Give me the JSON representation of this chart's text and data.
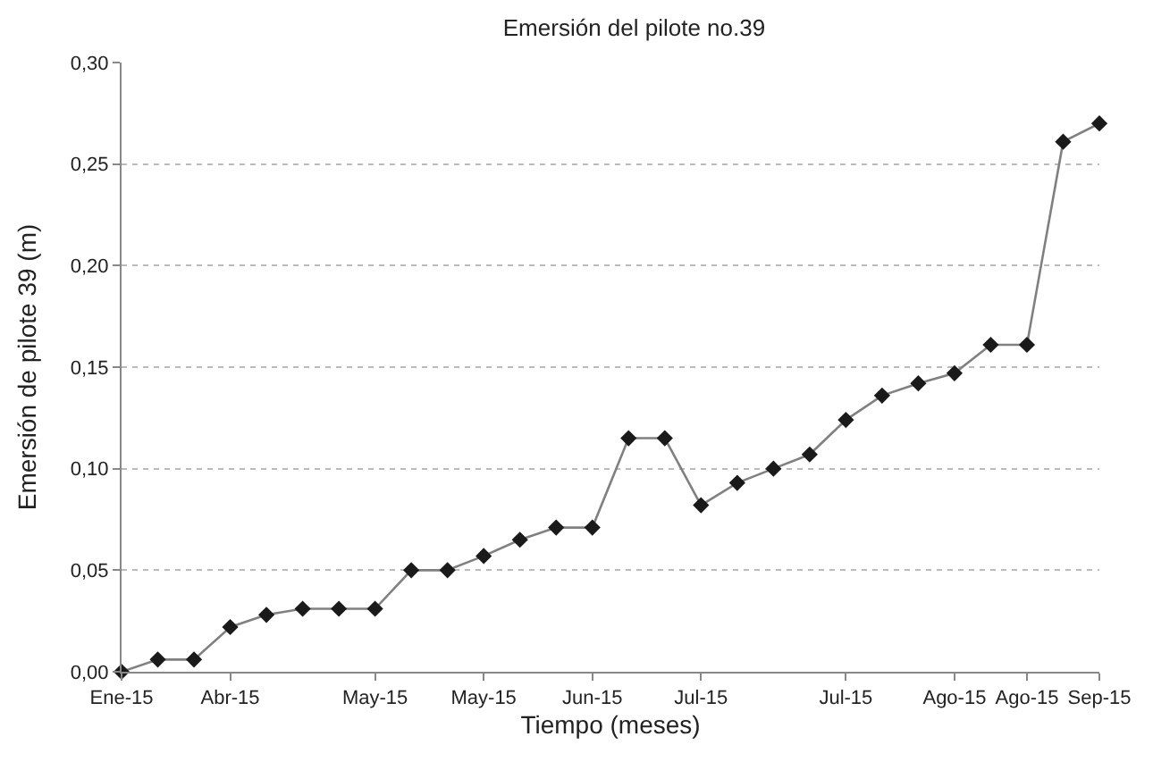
{
  "chart_data": {
    "type": "line",
    "title": "Emersión del pilote no.39",
    "xlabel": "Tiempo (meses)",
    "ylabel": "Emersión de pilote 39 (m)",
    "categories": [
      "Ene-15",
      null,
      null,
      "Abr-15",
      null,
      null,
      null,
      "May-15",
      null,
      null,
      "May-15",
      null,
      null,
      "Jun-15",
      null,
      null,
      "Jul-15",
      null,
      null,
      null,
      "Jul-15",
      null,
      null,
      "Ago-15",
      null,
      "Ago-15",
      null,
      "Sep-15"
    ],
    "series": [
      {
        "color": "#1a1a1a",
        "values": [
          0,
          0.006,
          0.006,
          0.022,
          0.028,
          0.031,
          0.031,
          0.031,
          0.05,
          0.05,
          0.057,
          0.065,
          0.071,
          0.071,
          0.115,
          0.115,
          0.082,
          0.093,
          0.1,
          0.107,
          0.124,
          0.136,
          0.142,
          0.147,
          0.161,
          0.161,
          0.261,
          0.27
        ]
      }
    ],
    "ylim": [
      0,
      0.3
    ],
    "yticks": [
      {
        "value": 0,
        "label": "0,00"
      },
      {
        "value": 0.05,
        "label": "0,05"
      },
      {
        "value": 0.1,
        "label": "0,10"
      },
      {
        "value": 0.15,
        "label": "0,15"
      },
      {
        "value": 0.2,
        "label": "0,20"
      },
      {
        "value": 0.25,
        "label": "0,25"
      },
      {
        "value": 0.3,
        "label": "0,30"
      }
    ],
    "grid": "y",
    "marker": "diamond",
    "line_style": "solid"
  }
}
